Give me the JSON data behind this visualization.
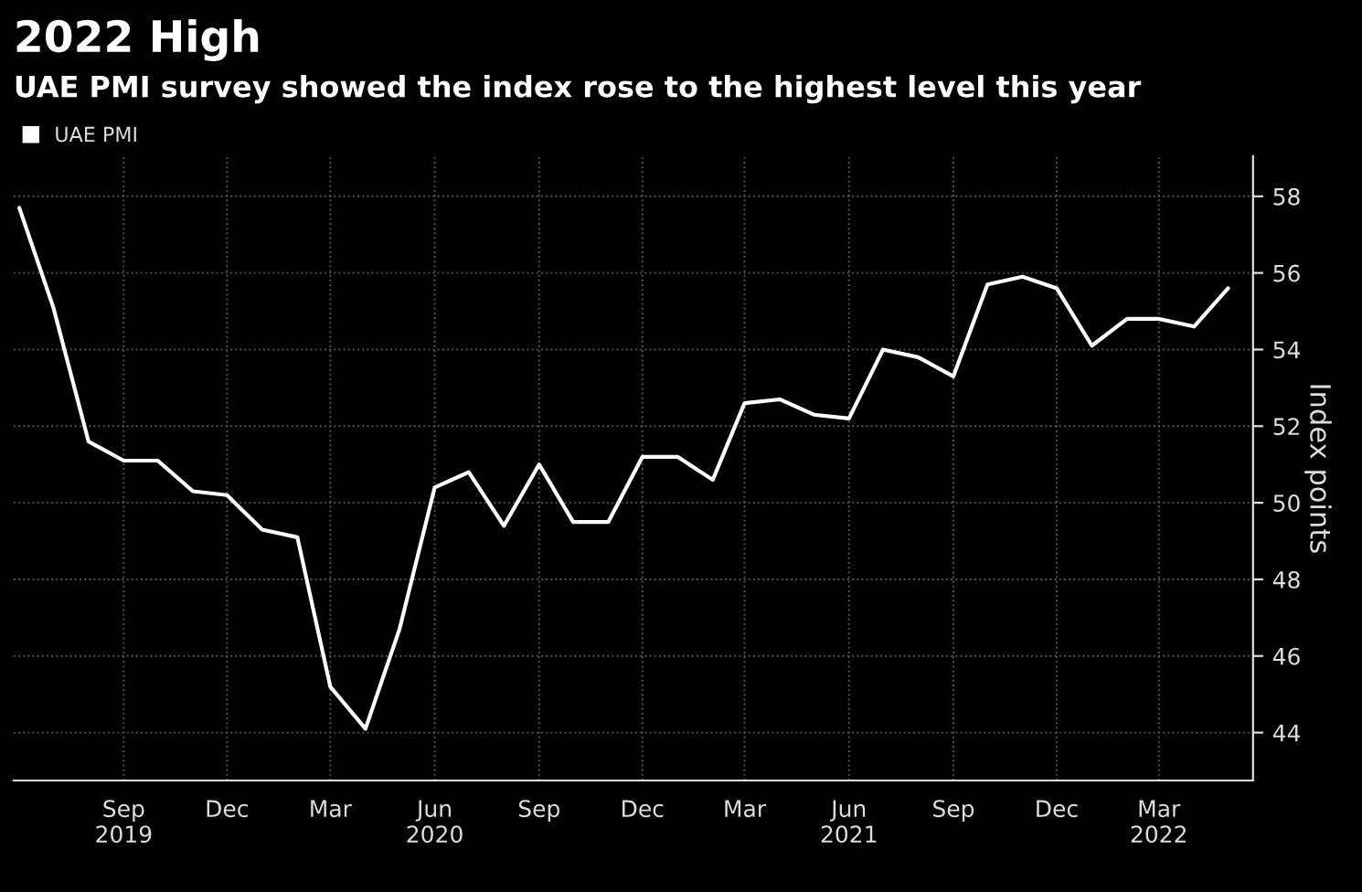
{
  "chart_data": {
    "type": "line",
    "title": "2022 High",
    "subtitle": "UAE PMI survey showed the index rose to the highest level this year",
    "ylabel": "Index points",
    "x": [
      "2019-06",
      "2019-07",
      "2019-08",
      "2019-09",
      "2019-10",
      "2019-11",
      "2019-12",
      "2020-01",
      "2020-02",
      "2020-03",
      "2020-04",
      "2020-05",
      "2020-06",
      "2020-07",
      "2020-08",
      "2020-09",
      "2020-10",
      "2020-11",
      "2020-12",
      "2021-01",
      "2021-02",
      "2021-03",
      "2021-04",
      "2021-05",
      "2021-06",
      "2021-07",
      "2021-08",
      "2021-09",
      "2021-10",
      "2021-11",
      "2021-12",
      "2022-01",
      "2022-02",
      "2022-03",
      "2022-04",
      "2022-05"
    ],
    "series": [
      {
        "name": "UAE PMI",
        "color": "#ffffff",
        "values": [
          57.7,
          55.1,
          51.6,
          51.1,
          51.1,
          50.3,
          50.2,
          49.3,
          49.1,
          45.2,
          44.1,
          46.7,
          50.4,
          50.8,
          49.4,
          51.0,
          49.5,
          49.5,
          51.2,
          51.2,
          50.6,
          52.6,
          52.7,
          52.3,
          52.2,
          54.0,
          53.8,
          53.3,
          55.7,
          55.9,
          55.6,
          54.1,
          54.8,
          54.8,
          54.6,
          55.6
        ]
      }
    ],
    "xlim": [
      "2019-05-27",
      "2022-05-23"
    ],
    "xticks": [
      {
        "value": "2019-09-01",
        "label": "Sep\n2019"
      },
      {
        "value": "2019-12-01",
        "label": "Dec"
      },
      {
        "value": "2020-03-01",
        "label": "Mar"
      },
      {
        "value": "2020-06-01",
        "label": "Jun\n2020"
      },
      {
        "value": "2020-09-01",
        "label": "Sep"
      },
      {
        "value": "2020-12-01",
        "label": "Dec"
      },
      {
        "value": "2021-03-01",
        "label": "Mar"
      },
      {
        "value": "2021-06-01",
        "label": "Jun\n2021"
      },
      {
        "value": "2021-09-01",
        "label": "Sep"
      },
      {
        "value": "2021-12-01",
        "label": "Dec"
      },
      {
        "value": "2022-03-01",
        "label": "Mar\n2022"
      }
    ],
    "ylim": [
      42.75,
      59.05
    ],
    "yticks": [
      44,
      46,
      48,
      50,
      52,
      54,
      56,
      58
    ],
    "grid": true,
    "legend": "top left",
    "marker": "none",
    "line_style": "solid"
  }
}
